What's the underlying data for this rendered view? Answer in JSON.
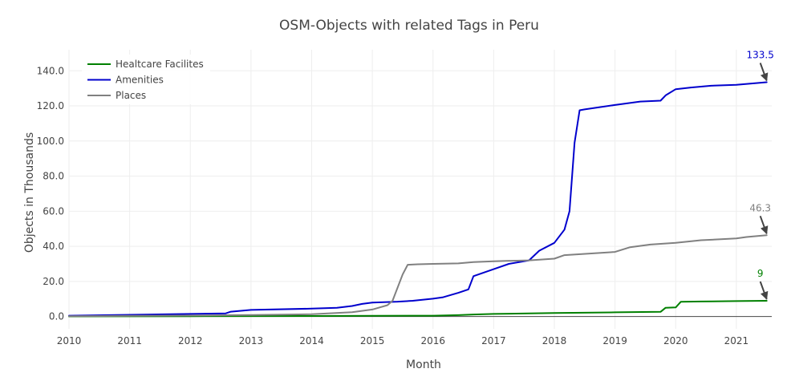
{
  "chart_data": {
    "type": "line",
    "title": "OSM-Objects with related Tags in Peru",
    "xlabel": "Month",
    "ylabel": "Objects in Thousands",
    "xlim": [
      "2010-01",
      "2021-08"
    ],
    "ylim": [
      -7,
      152
    ],
    "x_ticks": [
      "2010",
      "2011",
      "2012",
      "2013",
      "2014",
      "2015",
      "2016",
      "2017",
      "2018",
      "2019",
      "2020",
      "2021"
    ],
    "y_ticks": [
      "0.0",
      "20.0",
      "40.0",
      "60.0",
      "80.0",
      "100.0",
      "120.0",
      "140.0"
    ],
    "grid": true,
    "legend_position": "top-left",
    "series": [
      {
        "name": "Healtcare Facilites",
        "color": "#008000",
        "x": [
          "2010-01",
          "2012-01",
          "2014-01",
          "2015-01",
          "2016-01",
          "2016-06",
          "2016-09",
          "2017-01",
          "2018-01",
          "2019-01",
          "2019-10",
          "2019-11",
          "2020-01",
          "2020-02",
          "2020-06",
          "2021-01",
          "2021-07"
        ],
        "y": [
          0.1,
          0.2,
          0.3,
          0.4,
          0.5,
          0.8,
          1.2,
          1.5,
          2.0,
          2.4,
          2.7,
          5.0,
          5.2,
          8.4,
          8.6,
          8.8,
          9.0
        ]
      },
      {
        "name": "Amenities",
        "color": "#0000cd",
        "x": [
          "2010-01",
          "2011-01",
          "2012-01",
          "2012-08",
          "2012-09",
          "2013-01",
          "2014-01",
          "2014-06",
          "2014-09",
          "2014-11",
          "2015-01",
          "2015-06",
          "2015-09",
          "2016-01",
          "2016-03",
          "2016-06",
          "2016-08",
          "2016-09",
          "2017-01",
          "2017-04",
          "2017-08",
          "2017-10",
          "2018-01",
          "2018-03",
          "2018-04",
          "2018-05",
          "2018-06",
          "2018-07",
          "2019-01",
          "2019-06",
          "2019-10",
          "2019-11",
          "2020-01",
          "2020-04",
          "2020-08",
          "2021-01",
          "2021-07"
        ],
        "y": [
          0.5,
          1.0,
          1.5,
          1.8,
          2.8,
          3.8,
          4.5,
          5.0,
          6.0,
          7.2,
          8.0,
          8.5,
          9.0,
          10.2,
          11.0,
          13.5,
          15.5,
          23.0,
          27.0,
          30.0,
          32.0,
          37.5,
          42.0,
          49.5,
          60.0,
          99.0,
          117.5,
          118.0,
          120.5,
          122.5,
          123.0,
          126.0,
          129.5,
          130.5,
          131.5,
          132.0,
          133.5
        ]
      },
      {
        "name": "Places",
        "color": "#808080",
        "x": [
          "2010-01",
          "2011-01",
          "2012-01",
          "2013-01",
          "2014-01",
          "2014-09",
          "2015-01",
          "2015-04",
          "2015-05",
          "2015-07",
          "2015-08",
          "2015-10",
          "2016-01",
          "2016-06",
          "2016-09",
          "2017-01",
          "2017-08",
          "2018-01",
          "2018-03",
          "2019-01",
          "2019-04",
          "2019-08",
          "2020-01",
          "2020-06",
          "2021-01",
          "2021-03",
          "2021-07"
        ],
        "y": [
          0.2,
          0.4,
          0.6,
          0.9,
          1.3,
          2.5,
          4.0,
          6.5,
          9.0,
          24.0,
          29.5,
          29.8,
          30.0,
          30.3,
          31.0,
          31.5,
          32.0,
          33.0,
          35.0,
          36.8,
          39.5,
          41.0,
          42.0,
          43.5,
          44.5,
          45.3,
          46.3
        ]
      }
    ],
    "annotations": [
      {
        "text": "133.5",
        "x": "2021-07",
        "y": 133.5,
        "color": "#0000cd"
      },
      {
        "text": "46.3",
        "x": "2021-07",
        "y": 46.3,
        "color": "#808080"
      },
      {
        "text": "9",
        "x": "2021-07",
        "y": 9.0,
        "color": "#008000"
      }
    ]
  }
}
